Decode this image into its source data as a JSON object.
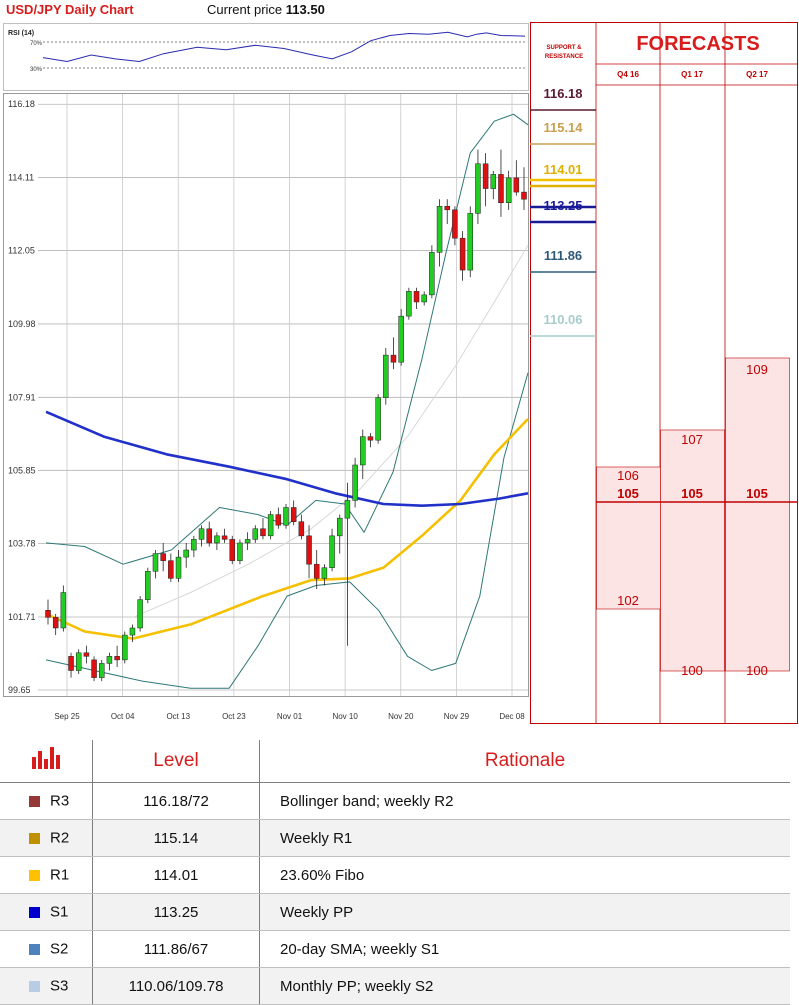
{
  "header": {
    "title": "USD/JPY Daily Chart",
    "price_label": "Current price",
    "price_value": "113.50"
  },
  "rsi": {
    "label": "RSI (14)",
    "tick_high": "70%",
    "tick_low": "30%"
  },
  "panel": {
    "sr_title": "SUPPORT & RESISTANCE",
    "forecast_title": "FORECASTS",
    "quarters": [
      "Q4 16",
      "Q1 17",
      "Q2 17"
    ]
  },
  "chart_data": {
    "type": "candlestick",
    "ylim": [
      99.4,
      116.5
    ],
    "y_ticks": [
      "116.18",
      "114.11",
      "112.05",
      "109.98",
      "107.91",
      "105.85",
      "103.78",
      "101.71",
      "99.65"
    ],
    "x_ticks": [
      "Sep 25",
      "Oct 04",
      "Oct 13",
      "Oct 23",
      "Nov 01",
      "Nov 10",
      "Nov 20",
      "Nov 29",
      "Dec 08"
    ],
    "levels": [
      {
        "value": 116.18,
        "label": "116.18",
        "color": "#5a1a2e"
      },
      {
        "value": 115.14,
        "label": "115.14",
        "color": "#c8a050"
      },
      {
        "value": 114.01,
        "label": "114.01",
        "color": "#e0b000"
      },
      {
        "value": 113.25,
        "label": "113.25",
        "color": "#1a1a99"
      },
      {
        "value": 111.86,
        "label": "111.86",
        "color": "#2e5a7a"
      },
      {
        "value": 110.06,
        "label": "110.06",
        "color": "#a8cccc"
      }
    ],
    "candles": [
      [
        101.9,
        102.2,
        101.5,
        101.7
      ],
      [
        101.7,
        101.8,
        101.2,
        101.4
      ],
      [
        101.4,
        102.6,
        101.3,
        102.4
      ],
      [
        100.6,
        100.7,
        100.0,
        100.2
      ],
      [
        100.2,
        100.8,
        100.1,
        100.7
      ],
      [
        100.7,
        100.9,
        100.4,
        100.6
      ],
      [
        100.5,
        100.6,
        99.9,
        100.0
      ],
      [
        100.0,
        100.5,
        99.9,
        100.4
      ],
      [
        100.4,
        100.7,
        100.2,
        100.6
      ],
      [
        100.6,
        100.9,
        100.3,
        100.5
      ],
      [
        100.5,
        101.3,
        100.4,
        101.2
      ],
      [
        101.2,
        101.5,
        101.0,
        101.4
      ],
      [
        101.4,
        102.3,
        101.3,
        102.2
      ],
      [
        102.2,
        103.1,
        102.1,
        103.0
      ],
      [
        103.0,
        103.6,
        102.8,
        103.5
      ],
      [
        103.5,
        103.8,
        103.0,
        103.3
      ],
      [
        103.3,
        103.5,
        102.7,
        102.8
      ],
      [
        102.8,
        103.6,
        102.7,
        103.4
      ],
      [
        103.4,
        103.8,
        103.1,
        103.6
      ],
      [
        103.6,
        104.0,
        103.4,
        103.9
      ],
      [
        103.9,
        104.3,
        103.7,
        104.2
      ],
      [
        104.2,
        104.4,
        103.7,
        103.8
      ],
      [
        103.8,
        104.1,
        103.6,
        104.0
      ],
      [
        104.0,
        104.2,
        103.8,
        103.9
      ],
      [
        103.9,
        104.0,
        103.2,
        103.3
      ],
      [
        103.3,
        103.9,
        103.2,
        103.8
      ],
      [
        103.8,
        104.1,
        103.6,
        103.9
      ],
      [
        103.9,
        104.3,
        103.8,
        104.2
      ],
      [
        104.2,
        104.5,
        103.9,
        104.0
      ],
      [
        104.0,
        104.7,
        103.9,
        104.6
      ],
      [
        104.6,
        104.8,
        104.2,
        104.3
      ],
      [
        104.3,
        104.9,
        104.2,
        104.8
      ],
      [
        104.8,
        105.0,
        104.3,
        104.4
      ],
      [
        104.4,
        104.6,
        103.9,
        104.0
      ],
      [
        104.0,
        104.3,
        102.8,
        103.2
      ],
      [
        103.2,
        103.6,
        102.5,
        102.8
      ],
      [
        102.8,
        103.2,
        102.6,
        103.1
      ],
      [
        103.1,
        104.2,
        103.0,
        104.0
      ],
      [
        104.0,
        104.6,
        103.5,
        104.5
      ],
      [
        104.5,
        105.5,
        100.9,
        105.0
      ],
      [
        105.0,
        106.2,
        104.8,
        106.0
      ],
      [
        106.0,
        107.0,
        105.6,
        106.8
      ],
      [
        106.8,
        106.9,
        106.5,
        106.7
      ],
      [
        106.7,
        108.0,
        106.6,
        107.9
      ],
      [
        107.9,
        109.3,
        107.7,
        109.1
      ],
      [
        109.1,
        109.6,
        108.7,
        108.9
      ],
      [
        108.9,
        110.4,
        108.8,
        110.2
      ],
      [
        110.2,
        111.0,
        110.1,
        110.9
      ],
      [
        110.9,
        111.0,
        110.4,
        110.6
      ],
      [
        110.6,
        110.9,
        110.5,
        110.8
      ],
      [
        110.8,
        112.2,
        110.7,
        112.0
      ],
      [
        112.0,
        113.5,
        111.6,
        113.3
      ],
      [
        113.3,
        113.5,
        112.8,
        113.2
      ],
      [
        113.2,
        113.3,
        112.2,
        112.4
      ],
      [
        112.4,
        112.6,
        111.2,
        111.5
      ],
      [
        111.5,
        113.3,
        111.3,
        113.1
      ],
      [
        113.1,
        114.9,
        112.8,
        114.5
      ],
      [
        114.5,
        114.8,
        113.3,
        113.8
      ],
      [
        113.8,
        114.3,
        113.5,
        114.2
      ],
      [
        114.2,
        114.9,
        113.0,
        113.4
      ],
      [
        113.4,
        114.3,
        113.2,
        114.1
      ],
      [
        114.1,
        114.6,
        113.6,
        113.7
      ],
      [
        113.7,
        114.4,
        113.2,
        113.5
      ]
    ],
    "sma_blue": [
      [
        0,
        107.5
      ],
      [
        0.12,
        106.8
      ],
      [
        0.25,
        106.3
      ],
      [
        0.38,
        105.95
      ],
      [
        0.5,
        105.6
      ],
      [
        0.6,
        105.2
      ],
      [
        0.7,
        104.9
      ],
      [
        0.78,
        104.85
      ],
      [
        0.86,
        104.9
      ],
      [
        0.94,
        105.05
      ],
      [
        1,
        105.2
      ]
    ],
    "sma_gold": [
      [
        0,
        101.8
      ],
      [
        0.08,
        101.3
      ],
      [
        0.18,
        101.1
      ],
      [
        0.3,
        101.5
      ],
      [
        0.45,
        102.3
      ],
      [
        0.55,
        102.75
      ],
      [
        0.63,
        102.8
      ],
      [
        0.7,
        103.1
      ],
      [
        0.78,
        104.0
      ],
      [
        0.86,
        105.0
      ],
      [
        0.93,
        106.3
      ],
      [
        1,
        107.3
      ]
    ],
    "sma_thin": [
      [
        0.18,
        101.7
      ],
      [
        0.3,
        102.4
      ],
      [
        0.42,
        103.2
      ],
      [
        0.55,
        104.2
      ],
      [
        0.65,
        105.3
      ],
      [
        0.75,
        106.8
      ],
      [
        0.85,
        108.8
      ],
      [
        0.93,
        110.6
      ],
      [
        1,
        112.2
      ]
    ],
    "bb_upper": [
      [
        0.0,
        103.8
      ],
      [
        0.08,
        103.7
      ],
      [
        0.16,
        103.2
      ],
      [
        0.26,
        103.6
      ],
      [
        0.36,
        104.8
      ],
      [
        0.44,
        104.6
      ],
      [
        0.5,
        104.3
      ],
      [
        0.56,
        105.0
      ],
      [
        0.62,
        104.9
      ],
      [
        0.66,
        104.1
      ],
      [
        0.72,
        105.8
      ],
      [
        0.78,
        109.0
      ],
      [
        0.83,
        112.0
      ],
      [
        0.88,
        114.8
      ],
      [
        0.93,
        115.7
      ],
      [
        0.97,
        115.9
      ],
      [
        1,
        115.6
      ]
    ],
    "bb_lower": [
      [
        0.0,
        100.5
      ],
      [
        0.1,
        100.2
      ],
      [
        0.2,
        99.9
      ],
      [
        0.3,
        99.7
      ],
      [
        0.38,
        99.7
      ],
      [
        0.44,
        100.9
      ],
      [
        0.5,
        102.3
      ],
      [
        0.56,
        102.6
      ],
      [
        0.63,
        102.7
      ],
      [
        0.69,
        101.9
      ],
      [
        0.75,
        100.6
      ],
      [
        0.8,
        100.2
      ],
      [
        0.85,
        100.4
      ],
      [
        0.9,
        102.3
      ],
      [
        0.95,
        106.2
      ],
      [
        1,
        108.6
      ]
    ],
    "rsi": [
      [
        0,
        46
      ],
      [
        0.05,
        40
      ],
      [
        0.1,
        50
      ],
      [
        0.15,
        44
      ],
      [
        0.2,
        40
      ],
      [
        0.25,
        52
      ],
      [
        0.32,
        62
      ],
      [
        0.38,
        58
      ],
      [
        0.44,
        65
      ],
      [
        0.5,
        60
      ],
      [
        0.56,
        50
      ],
      [
        0.6,
        44
      ],
      [
        0.64,
        55
      ],
      [
        0.68,
        72
      ],
      [
        0.72,
        80
      ],
      [
        0.76,
        83
      ],
      [
        0.8,
        82
      ],
      [
        0.84,
        85
      ],
      [
        0.88,
        78
      ],
      [
        0.9,
        82
      ],
      [
        0.92,
        84
      ],
      [
        0.95,
        80
      ],
      [
        1,
        79
      ]
    ]
  },
  "forecasts": {
    "q4": {
      "high": "106",
      "mid": "105",
      "low": "102"
    },
    "q1": {
      "high": "107",
      "mid": "105",
      "low": "100"
    },
    "q2": {
      "high": "109",
      "mid": "105",
      "low": "100"
    }
  },
  "table": {
    "headers": {
      "level": "Level",
      "rationale": "Rationale"
    },
    "rows": [
      {
        "name": "R3",
        "level": "116.18/72",
        "rationale": "Bollinger band; weekly R2",
        "color": "#953735"
      },
      {
        "name": "R2",
        "level": "115.14",
        "rationale": "Weekly R1",
        "color": "#c09000"
      },
      {
        "name": "R1",
        "level": "114.01",
        "rationale": "23.60% Fibo",
        "color": "#ffc000"
      },
      {
        "name": "S1",
        "level": "113.25",
        "rationale": "Weekly PP",
        "color": "#0000cc"
      },
      {
        "name": "S2",
        "level": "111.86/67",
        "rationale": "20-day SMA; weekly S1",
        "color": "#4f81bd"
      },
      {
        "name": "S3",
        "level": "110.06/109.78",
        "rationale": "Monthly PP; weekly S2",
        "color": "#b8cce4"
      }
    ]
  }
}
